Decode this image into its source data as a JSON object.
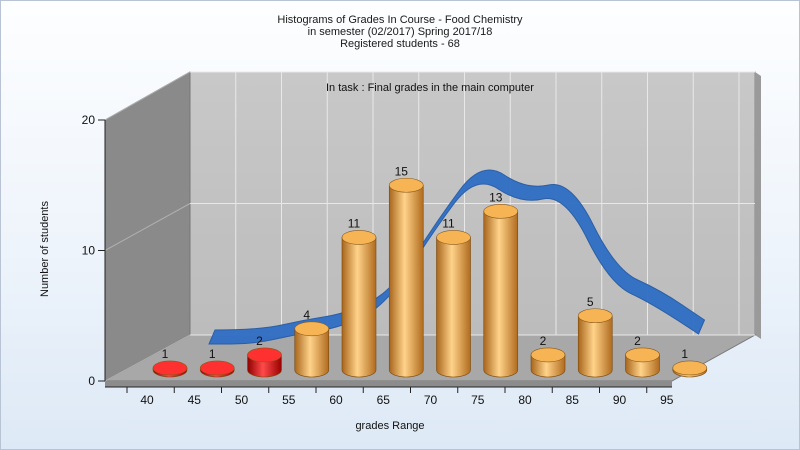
{
  "header": {
    "title_line1": "Histograms of Grades  In Course - Food Chemistry",
    "title_line2": "in semester  (02/2017) Spring 2017/18",
    "title_line3": "Registered students - 68"
  },
  "chart_data": {
    "type": "bar",
    "style": "3d-cylinder",
    "subtitle": "In task : Final grades in the main computer",
    "xlabel": "grades Range",
    "ylabel": "Number of students",
    "categories": [
      "40",
      "45",
      "50",
      "55",
      "60",
      "65",
      "70",
      "75",
      "80",
      "85",
      "90",
      "95"
    ],
    "values": [
      1,
      1,
      2,
      4,
      11,
      15,
      11,
      13,
      2,
      5,
      2,
      1
    ],
    "bar_colors": [
      "#e01010",
      "#e01010",
      "#e01010",
      "#f0a64a",
      "#f0a64a",
      "#f0a64a",
      "#f0a64a",
      "#f0a64a",
      "#f0a64a",
      "#f0a64a",
      "#f0a64a",
      "#f0a64a"
    ],
    "trend_curve": {
      "type": "area-ribbon",
      "color": "#2f6ec4",
      "values": [
        0,
        0,
        1,
        1.7,
        4,
        11,
        17,
        14,
        15,
        6,
        4,
        1
      ]
    },
    "y_ticks": [
      "0",
      "10",
      "20"
    ],
    "ylim": [
      0,
      20
    ],
    "grid": true,
    "colors": {
      "wall": "#c0c0c0",
      "side_wall": "#8a8a8a",
      "floor": "#a8a8a8",
      "grid": "#e8e8e8"
    }
  }
}
